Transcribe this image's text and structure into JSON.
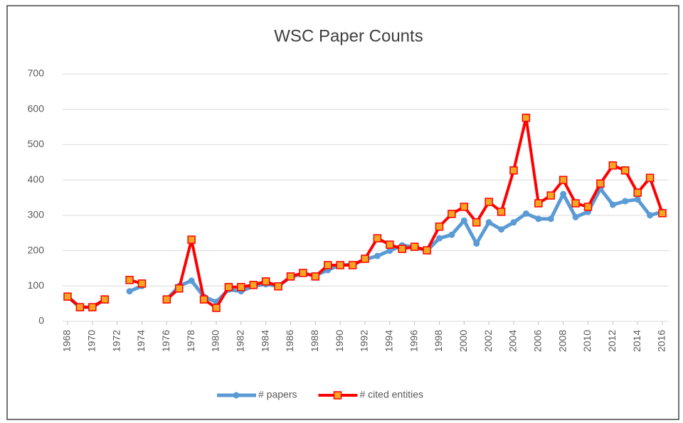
{
  "chart_data": {
    "type": "line",
    "title": "WSC Paper Counts",
    "x": [
      1968,
      1969,
      1970,
      1971,
      1972,
      1973,
      1974,
      1975,
      1976,
      1977,
      1978,
      1979,
      1980,
      1981,
      1982,
      1983,
      1984,
      1985,
      1986,
      1987,
      1988,
      1989,
      1990,
      1991,
      1992,
      1993,
      1994,
      1995,
      1996,
      1997,
      1998,
      1999,
      2000,
      2001,
      2002,
      2003,
      2004,
      2005,
      2006,
      2007,
      2008,
      2009,
      2010,
      2011,
      2012,
      2013,
      2014,
      2015,
      2016
    ],
    "series": [
      {
        "name": "# papers",
        "color": "#5b9bd5",
        "marker": "circle",
        "values": [
          70,
          40,
          40,
          62,
          null,
          85,
          100,
          null,
          62,
          100,
          115,
          70,
          55,
          90,
          85,
          100,
          105,
          100,
          125,
          135,
          130,
          145,
          160,
          160,
          175,
          185,
          200,
          215,
          210,
          200,
          235,
          245,
          285,
          220,
          280,
          260,
          280,
          305,
          290,
          290,
          360,
          295,
          310,
          375,
          330,
          340,
          345,
          300,
          310
        ]
      },
      {
        "name": "# cited entities",
        "color": "#ff0000",
        "marker": "square",
        "marker_fill": "#f5a623",
        "values": [
          70,
          40,
          40,
          62,
          null,
          117,
          107,
          null,
          62,
          93,
          231,
          62,
          38,
          97,
          97,
          103,
          113,
          99,
          127,
          137,
          127,
          159,
          159,
          159,
          177,
          235,
          217,
          205,
          211,
          201,
          268,
          304,
          324,
          280,
          338,
          310,
          427,
          576,
          334,
          356,
          400,
          334,
          324,
          390,
          441,
          427,
          364,
          406,
          306
        ]
      }
    ],
    "xlim": [
      1968,
      2016
    ],
    "xticks": [
      1968,
      1970,
      1972,
      1974,
      1976,
      1978,
      1980,
      1982,
      1984,
      1986,
      1988,
      1990,
      1992,
      1994,
      1996,
      1998,
      2000,
      2002,
      2004,
      2006,
      2008,
      2010,
      2012,
      2014,
      2016
    ],
    "ylim": [
      0,
      700
    ],
    "yticks": [
      0,
      100,
      200,
      300,
      400,
      500,
      600,
      700
    ],
    "grid": true,
    "legend": "bottom"
  }
}
